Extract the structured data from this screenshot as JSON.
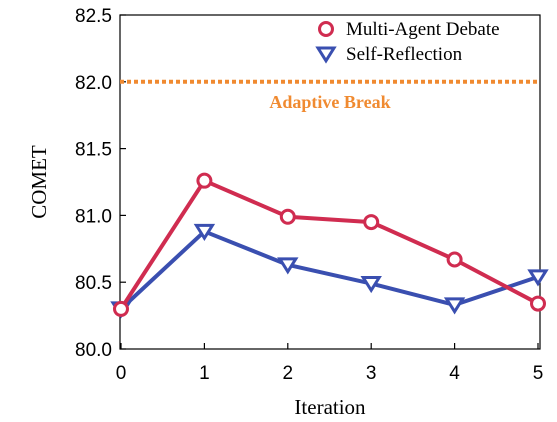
{
  "chart_data": {
    "type": "line",
    "title": "",
    "xlabel": "Iteration",
    "ylabel": "COMET",
    "x": [
      0,
      1,
      2,
      3,
      4,
      5
    ],
    "xticks": [
      "0",
      "1",
      "2",
      "3",
      "4",
      "5"
    ],
    "xlim": [
      0,
      5
    ],
    "ylim": [
      80.0,
      82.5
    ],
    "yticks": [
      "80.0",
      "80.5",
      "81.0",
      "81.5",
      "82.0",
      "82.5"
    ],
    "grid": false,
    "legend_position": "top-right",
    "series": [
      {
        "name": "Multi-Agent Debate",
        "values": [
          80.3,
          81.26,
          80.99,
          80.95,
          80.67,
          80.34
        ],
        "color": "#d02c50",
        "marker": "circle"
      },
      {
        "name": "Self-Reflection",
        "values": [
          80.3,
          80.88,
          80.63,
          80.49,
          80.33,
          80.54
        ],
        "color": "#3a4fb0",
        "marker": "triangle-down"
      }
    ],
    "annotations": [
      {
        "type": "hline",
        "y": 82.0,
        "label": "Adaptive Break",
        "color": "#f08a30",
        "style": "dotted"
      }
    ]
  }
}
